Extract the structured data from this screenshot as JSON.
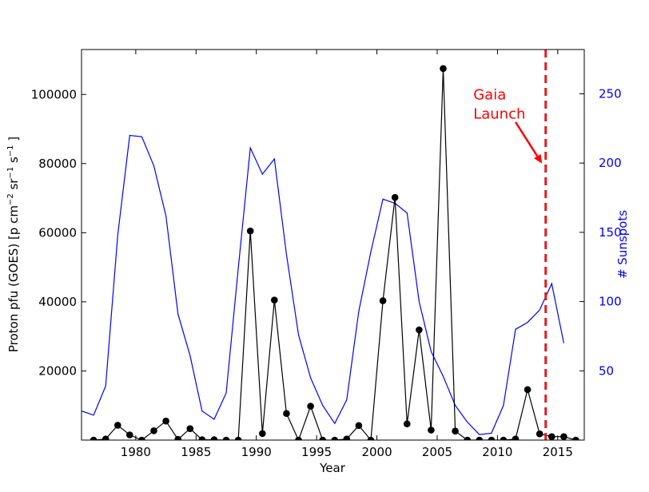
{
  "chart_data": {
    "type": "line",
    "xlabel": "Year",
    "ylabel_left": "Proton pfu (GOES) [p cm",
    "ylabel_left_sup1": "−2",
    "ylabel_left_mid": " sr",
    "ylabel_left_sup2": "−1",
    "ylabel_left_mid2": " s",
    "ylabel_left_sup3": "−1",
    "ylabel_left_end": " ]",
    "ylabel_right": "# Sunspots",
    "xlim": [
      1975.5,
      2017.2
    ],
    "ylim_left": [
      0,
      113000
    ],
    "ylim_right": [
      0,
      282
    ],
    "x_ticks": [
      1980,
      1985,
      1990,
      1995,
      2000,
      2005,
      2010,
      2015
    ],
    "y_left_ticks": [
      20000,
      40000,
      60000,
      80000,
      100000
    ],
    "y_right_ticks": [
      50,
      100,
      150,
      200,
      250
    ],
    "grid": false,
    "colors": {
      "proton": "#000000",
      "sunspots": "#0000ff",
      "launch_line": "#e31a1c",
      "launch_text": "#ff0000",
      "right_axis": "#0000ff"
    },
    "series": [
      {
        "axis": "left",
        "x": [
          1976.5,
          1977.5,
          1978.5,
          1979.5,
          1980.5,
          1981.5,
          1982.5,
          1983.5,
          1984.5,
          1985.5,
          1986.5,
          1987.5,
          1988.5,
          1989.5,
          1990.5,
          1991.5,
          1992.5,
          1993.5,
          1994.5,
          1995.5,
          1996.5,
          1997.5,
          1998.5,
          1999.5,
          2000.5,
          2001.5,
          2002.5,
          2003.5,
          2004.5,
          2005.5,
          2006.5,
          2007.5,
          2008.5,
          2009.5,
          2010.5,
          2011.5,
          2012.5,
          2013.5,
          2014.5,
          2015.5,
          2016.5
        ],
        "values": [
          0,
          300,
          4300,
          1500,
          0,
          2700,
          5500,
          200,
          3300,
          100,
          100,
          0,
          0,
          60500,
          1900,
          40500,
          7700,
          0,
          9800,
          0,
          0,
          300,
          4200,
          0,
          40300,
          70200,
          4700,
          31900,
          2900,
          107500,
          2600,
          0,
          0,
          0,
          0,
          300,
          14600,
          1800,
          1000,
          1000,
          0
        ]
      },
      {
        "axis": "right",
        "x": [
          1975.5,
          1976.5,
          1977.5,
          1978.5,
          1979.5,
          1980.5,
          1981.5,
          1982.5,
          1983.5,
          1984.5,
          1985.5,
          1986.5,
          1987.5,
          1988.5,
          1989.5,
          1990.5,
          1991.5,
          1992.5,
          1993.5,
          1994.5,
          1995.5,
          1996.5,
          1997.5,
          1998.5,
          1999.5,
          2000.5,
          2001.5,
          2002.5,
          2003.5,
          2004.5,
          2005.5,
          2006.5,
          2007.5,
          2008.5,
          2009.5,
          2010.5,
          2011.5,
          2012.5,
          2013.5,
          2014.5,
          2015.5
        ],
        "values": [
          21,
          18,
          39,
          148,
          220,
          219,
          198,
          162,
          91,
          61,
          21,
          15,
          34,
          124,
          211,
          192,
          203,
          134,
          76,
          45,
          25,
          12,
          29,
          93,
          136,
          174,
          171,
          164,
          100,
          64,
          46,
          25,
          13,
          4,
          5,
          25,
          80,
          85,
          94,
          113,
          70
        ]
      }
    ],
    "annotation": {
      "text_line1": "Gaia",
      "text_line2": "Launch",
      "launch_year": 2014,
      "text_x": 2008,
      "text_y_line1": 98500,
      "text_y_line2": 93000,
      "arrow_from": [
        2011.5,
        92000
      ],
      "arrow_to": [
        2013.7,
        80000
      ]
    }
  }
}
